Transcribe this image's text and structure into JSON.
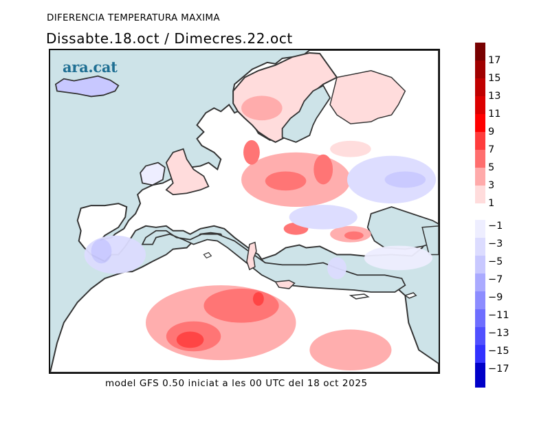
{
  "header": {
    "title": "DIFERENCIA TEMPERATURA MAXIMA",
    "subtitle": "Dissabte.18.oct / Dimecres.22.oct"
  },
  "map": {
    "logo": "ara.cat",
    "region": "Europe, North Africa and Middle East",
    "variable": "Maximum temperature difference (°C)",
    "colors": {
      "sea": "#cde3e8",
      "coastline": "#333333",
      "neutral_land": "#ffffff"
    },
    "notable_areas": [
      {
        "name": "Iceland",
        "sign": "negative",
        "class": "-3 to -5"
      },
      {
        "name": "Iberian Peninsula",
        "sign": "negative",
        "class": "-1 to -5"
      },
      {
        "name": "Central Europe (Germany/Poland)",
        "sign": "positive",
        "class": "3 to 7"
      },
      {
        "name": "Scandinavia south",
        "sign": "positive",
        "class": "1 to 5"
      },
      {
        "name": "Romania / Black Sea coast",
        "sign": "positive",
        "class": "3 to 7"
      },
      {
        "name": "Algeria / Tunisia",
        "sign": "positive",
        "class": "5 to 9"
      },
      {
        "name": "Western Russia",
        "sign": "negative",
        "class": "-1 to -5"
      },
      {
        "name": "Turkey",
        "sign": "negative",
        "class": "-1 to -3"
      }
    ]
  },
  "legend": {
    "positive": [
      {
        "label": "17",
        "color": "#780000"
      },
      {
        "label": "15",
        "color": "#a00000"
      },
      {
        "label": "13",
        "color": "#c00000"
      },
      {
        "label": "11",
        "color": "#dc0000"
      },
      {
        "label": "9",
        "color": "#ff0000"
      },
      {
        "label": "7",
        "color": "#ff3c3c"
      },
      {
        "label": "5",
        "color": "#ff6e6e"
      },
      {
        "label": "3",
        "color": "#ffaaaa"
      },
      {
        "label": "1",
        "color": "#ffdcdc"
      }
    ],
    "negative": [
      {
        "label": "−1",
        "color": "#eeeeff"
      },
      {
        "label": "−3",
        "color": "#dcdcff"
      },
      {
        "label": "−5",
        "color": "#c8c8ff"
      },
      {
        "label": "−7",
        "color": "#aaaaff"
      },
      {
        "label": "−9",
        "color": "#8c8cff"
      },
      {
        "label": "−11",
        "color": "#6e6eff"
      },
      {
        "label": "−13",
        "color": "#5050ff"
      },
      {
        "label": "−15",
        "color": "#3232ff"
      },
      {
        "label": "−17",
        "color": "#0000c8"
      }
    ]
  },
  "footer": {
    "text": "model GFS 0.50 iniciat a les 00 UTC del 18 oct 2025"
  }
}
